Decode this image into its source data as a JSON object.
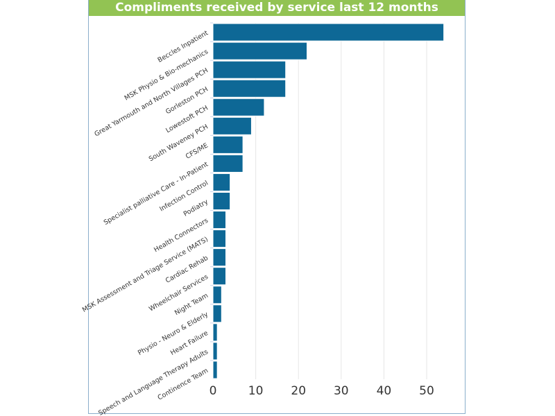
{
  "chart_data": {
    "type": "bar",
    "orientation": "horizontal",
    "title": "Compliments received by service last 12 months",
    "xlabel": "",
    "ylabel": "",
    "xlim": [
      0,
      56
    ],
    "xticks": [
      0,
      10,
      20,
      30,
      40,
      50
    ],
    "grid": true,
    "bar_color": "#0e6896",
    "categories": [
      "Beccles Inpatient",
      "MSK Physio & Bio-mechanics",
      "Great Yarmouth and North Villages PCH",
      "Gorleston PCH",
      "Lowestoft PCH",
      "South Waveney PCH",
      "CFS/ME",
      "Specialist palliative Care - In-Patient",
      "Infection Control",
      "Podiatry",
      "Health Connectors",
      "MSK Assessment and Triage Service (MATS)",
      "Cardiac Rehab",
      "Wheelchair Services",
      "Night Team",
      "Physio - Neuro & Elderly",
      "Heart Failure",
      "Speech and Language Therapy Adults",
      "Continence Team"
    ],
    "values": [
      54,
      22,
      17,
      17,
      12,
      9,
      7,
      7,
      4,
      4,
      3,
      3,
      3,
      3,
      2,
      2,
      1,
      1,
      1
    ]
  }
}
